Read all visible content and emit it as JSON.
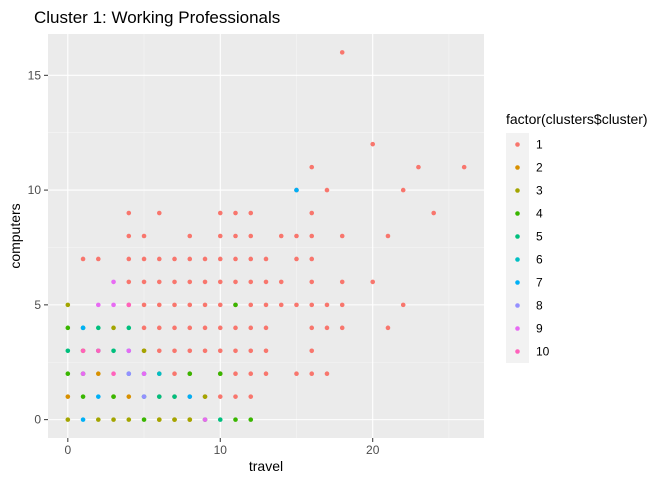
{
  "chart_data": {
    "type": "scatter",
    "title": "Cluster 1: Working Professionals",
    "xlabel": "travel",
    "ylabel": "computers",
    "xlim": [
      -1.3,
      27.3
    ],
    "ylim": [
      -0.8,
      16.8
    ],
    "x_ticks": [
      0,
      10,
      20
    ],
    "y_ticks": [
      0,
      5,
      10,
      15
    ],
    "grid": true,
    "legend": {
      "title": "factor(clusters$cluster)",
      "position": "right",
      "entries": [
        "1",
        "2",
        "3",
        "4",
        "5",
        "6",
        "7",
        "8",
        "9",
        "10"
      ]
    },
    "colors": {
      "1": "#F8766D",
      "2": "#D89000",
      "3": "#A3A500",
      "4": "#39B600",
      "5": "#00BF7D",
      "6": "#00BFC4",
      "7": "#00B0F6",
      "8": "#9590FF",
      "9": "#E76BF3",
      "10": "#FF62BC"
    },
    "series": [
      {
        "cluster": "1",
        "points": [
          [
            18,
            16
          ],
          [
            20,
            12
          ],
          [
            16,
            11
          ],
          [
            23,
            11
          ],
          [
            26,
            11
          ],
          [
            15,
            10
          ],
          [
            17,
            10
          ],
          [
            22,
            10
          ],
          [
            4,
            9
          ],
          [
            6,
            9
          ],
          [
            10,
            9
          ],
          [
            11,
            9
          ],
          [
            12,
            9
          ],
          [
            16,
            9
          ],
          [
            24,
            9
          ],
          [
            4,
            8
          ],
          [
            5,
            8
          ],
          [
            8,
            8
          ],
          [
            10,
            8
          ],
          [
            11,
            8
          ],
          [
            12,
            8
          ],
          [
            14,
            8
          ],
          [
            15,
            8
          ],
          [
            16,
            8
          ],
          [
            18,
            8
          ],
          [
            21,
            8
          ],
          [
            1,
            7
          ],
          [
            2,
            7
          ],
          [
            4,
            7
          ],
          [
            5,
            7
          ],
          [
            6,
            7
          ],
          [
            7,
            7
          ],
          [
            8,
            7
          ],
          [
            9,
            7
          ],
          [
            10,
            7
          ],
          [
            11,
            7
          ],
          [
            12,
            7
          ],
          [
            13,
            7
          ],
          [
            15,
            7
          ],
          [
            16,
            7
          ],
          [
            4,
            6
          ],
          [
            5,
            6
          ],
          [
            6,
            6
          ],
          [
            7,
            6
          ],
          [
            8,
            6
          ],
          [
            9,
            6
          ],
          [
            10,
            6
          ],
          [
            11,
            6
          ],
          [
            12,
            6
          ],
          [
            13,
            6
          ],
          [
            14,
            6
          ],
          [
            16,
            6
          ],
          [
            18,
            6
          ],
          [
            20,
            6
          ],
          [
            4,
            5
          ],
          [
            5,
            5
          ],
          [
            6,
            5
          ],
          [
            7,
            5
          ],
          [
            8,
            5
          ],
          [
            9,
            5
          ],
          [
            10,
            5
          ],
          [
            11,
            5
          ],
          [
            12,
            5
          ],
          [
            13,
            5
          ],
          [
            14,
            5
          ],
          [
            15,
            5
          ],
          [
            16,
            5
          ],
          [
            17,
            5
          ],
          [
            18,
            5
          ],
          [
            22,
            5
          ],
          [
            5,
            4
          ],
          [
            6,
            4
          ],
          [
            7,
            4
          ],
          [
            8,
            4
          ],
          [
            9,
            4
          ],
          [
            10,
            4
          ],
          [
            11,
            4
          ],
          [
            12,
            4
          ],
          [
            13,
            4
          ],
          [
            16,
            4
          ],
          [
            17,
            4
          ],
          [
            18,
            4
          ],
          [
            21,
            4
          ],
          [
            5,
            3
          ],
          [
            6,
            3
          ],
          [
            7,
            3
          ],
          [
            8,
            3
          ],
          [
            9,
            3
          ],
          [
            10,
            3
          ],
          [
            11,
            3
          ],
          [
            12,
            3
          ],
          [
            13,
            3
          ],
          [
            16,
            3
          ],
          [
            6,
            2
          ],
          [
            7,
            2
          ],
          [
            8,
            2
          ],
          [
            10,
            2
          ],
          [
            11,
            2
          ],
          [
            12,
            2
          ],
          [
            13,
            2
          ],
          [
            15,
            2
          ],
          [
            16,
            2
          ],
          [
            17,
            2
          ],
          [
            6,
            1
          ],
          [
            7,
            1
          ],
          [
            8,
            1
          ],
          [
            9,
            1
          ],
          [
            10,
            1
          ],
          [
            11,
            1
          ],
          [
            12,
            1
          ]
        ]
      },
      {
        "cluster": "2",
        "points": [
          [
            0,
            1
          ],
          [
            2,
            2
          ],
          [
            4,
            1
          ],
          [
            6,
            0
          ],
          [
            7,
            0
          ],
          [
            8,
            0
          ]
        ]
      },
      {
        "cluster": "3",
        "points": [
          [
            0,
            5
          ],
          [
            0,
            0
          ],
          [
            1,
            3
          ],
          [
            2,
            0
          ],
          [
            3,
            4
          ],
          [
            3,
            1
          ],
          [
            3,
            0
          ],
          [
            4,
            0
          ],
          [
            5,
            3
          ],
          [
            6,
            0
          ],
          [
            7,
            0
          ],
          [
            8,
            0
          ],
          [
            9,
            1
          ]
        ]
      },
      {
        "cluster": "4",
        "points": [
          [
            0,
            4
          ],
          [
            0,
            2
          ],
          [
            1,
            1
          ],
          [
            1,
            2
          ],
          [
            3,
            1
          ],
          [
            5,
            0
          ],
          [
            8,
            2
          ],
          [
            9,
            0
          ],
          [
            10,
            2
          ],
          [
            11,
            0
          ],
          [
            11,
            5
          ],
          [
            12,
            0
          ]
        ]
      },
      {
        "cluster": "5",
        "points": [
          [
            0,
            3
          ],
          [
            1,
            4
          ],
          [
            2,
            4
          ],
          [
            3,
            3
          ],
          [
            4,
            4
          ],
          [
            5,
            1
          ],
          [
            6,
            1
          ],
          [
            7,
            1
          ],
          [
            10,
            0
          ]
        ]
      },
      {
        "cluster": "6",
        "points": [
          [
            2,
            3
          ],
          [
            4,
            2
          ],
          [
            5,
            2
          ],
          [
            6,
            2
          ]
        ]
      },
      {
        "cluster": "7",
        "points": [
          [
            1,
            4
          ],
          [
            1,
            0
          ],
          [
            2,
            1
          ],
          [
            4,
            3
          ],
          [
            8,
            1
          ],
          [
            15,
            10
          ]
        ]
      },
      {
        "cluster": "8",
        "points": [
          [
            4,
            2
          ],
          [
            5,
            1
          ]
        ]
      },
      {
        "cluster": "9",
        "points": [
          [
            1,
            2
          ],
          [
            2,
            5
          ],
          [
            3,
            5
          ],
          [
            3,
            6
          ],
          [
            4,
            3
          ],
          [
            5,
            2
          ],
          [
            9,
            0
          ]
        ]
      },
      {
        "cluster": "10",
        "points": [
          [
            1,
            3
          ],
          [
            2,
            3
          ],
          [
            3,
            2
          ],
          [
            4,
            5
          ]
        ]
      }
    ]
  }
}
